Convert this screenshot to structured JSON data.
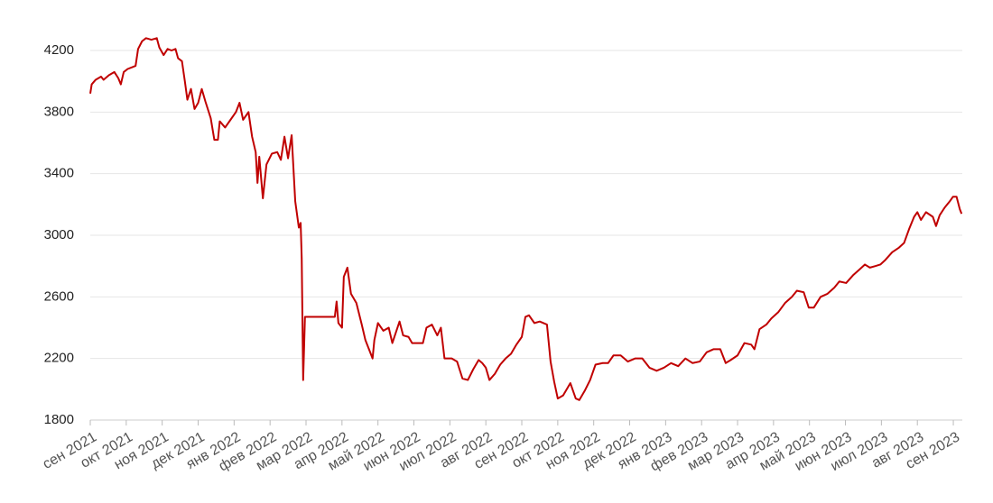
{
  "chart_data": {
    "type": "line",
    "x": [
      0,
      0.04,
      0.15,
      0.3,
      0.37,
      0.52,
      0.67,
      0.78,
      0.85,
      0.93,
      1.04,
      1.15,
      1.26,
      1.33,
      1.44,
      1.55,
      1.7,
      1.85,
      1.92,
      2.04,
      2.15,
      2.26,
      2.37,
      2.44,
      2.55,
      2.63,
      2.7,
      2.8,
      2.9,
      3.0,
      3.1,
      3.2,
      3.35,
      3.45,
      3.55,
      3.6,
      3.75,
      3.9,
      4.05,
      4.15,
      4.25,
      4.4,
      4.5,
      4.6,
      4.65,
      4.7,
      4.8,
      4.9,
      5.05,
      5.2,
      5.3,
      5.4,
      5.5,
      5.6,
      5.7,
      5.8,
      5.85,
      5.88,
      5.92,
      5.97,
      6.25,
      6.8,
      6.85,
      6.9,
      7.0,
      7.05,
      7.15,
      7.25,
      7.4,
      7.55,
      7.65,
      7.75,
      7.85,
      7.9,
      8.0,
      8.15,
      8.3,
      8.4,
      8.6,
      8.7,
      8.85,
      8.95,
      9.25,
      9.35,
      9.5,
      9.65,
      9.75,
      9.85,
      10.05,
      10.2,
      10.35,
      10.5,
      10.65,
      10.8,
      10.9,
      11.0,
      11.1,
      11.25,
      11.4,
      11.55,
      11.7,
      11.85,
      12.0,
      12.1,
      12.2,
      12.35,
      12.5,
      12.7,
      12.8,
      12.9,
      13.0,
      13.15,
      13.35,
      13.5,
      13.6,
      13.75,
      13.9,
      14.05,
      14.25,
      14.4,
      14.55,
      14.75,
      14.95,
      15.15,
      15.35,
      15.55,
      15.75,
      15.95,
      16.15,
      16.35,
      16.55,
      16.75,
      16.95,
      17.14,
      17.33,
      17.52,
      17.67,
      17.81,
      18.0,
      18.19,
      18.38,
      18.47,
      18.61,
      18.8,
      18.94,
      19.13,
      19.32,
      19.51,
      19.65,
      19.84,
      19.98,
      20.12,
      20.31,
      20.5,
      20.69,
      20.83,
      21.02,
      21.21,
      21.4,
      21.54,
      21.68,
      21.83,
      21.97,
      22.11,
      22.3,
      22.49,
      22.63,
      22.77,
      22.91,
      23.0,
      23.1,
      23.24,
      23.43,
      23.52,
      23.62,
      23.76,
      23.9,
      23.99,
      24.09,
      24.18,
      24.23
    ],
    "series": [
      {
        "color": "#c00000",
        "values": [
          3920,
          3980,
          4010,
          4030,
          4010,
          4040,
          4060,
          4020,
          3980,
          4060,
          4080,
          4090,
          4100,
          4210,
          4260,
          4280,
          4270,
          4280,
          4220,
          4170,
          4210,
          4200,
          4210,
          4150,
          4130,
          4000,
          3880,
          3950,
          3820,
          3860,
          3950,
          3870,
          3760,
          3620,
          3620,
          3740,
          3700,
          3750,
          3800,
          3860,
          3750,
          3800,
          3640,
          3540,
          3340,
          3510,
          3240,
          3460,
          3530,
          3540,
          3490,
          3640,
          3500,
          3650,
          3220,
          3050,
          3080,
          2850,
          2060,
          2470,
          2470,
          2470,
          2570,
          2430,
          2400,
          2730,
          2790,
          2620,
          2560,
          2420,
          2320,
          2260,
          2200,
          2320,
          2430,
          2380,
          2400,
          2300,
          2440,
          2350,
          2340,
          2300,
          2300,
          2400,
          2420,
          2350,
          2400,
          2200,
          2200,
          2180,
          2070,
          2060,
          2130,
          2190,
          2170,
          2140,
          2060,
          2100,
          2160,
          2200,
          2230,
          2290,
          2340,
          2470,
          2480,
          2430,
          2440,
          2420,
          2180,
          2050,
          1940,
          1960,
          2040,
          1940,
          1930,
          1990,
          2060,
          2160,
          2170,
          2170,
          2220,
          2220,
          2180,
          2200,
          2200,
          2140,
          2120,
          2140,
          2170,
          2150,
          2200,
          2170,
          2180,
          2240,
          2260,
          2260,
          2170,
          2190,
          2220,
          2300,
          2290,
          2260,
          2390,
          2420,
          2460,
          2500,
          2560,
          2600,
          2640,
          2630,
          2530,
          2530,
          2600,
          2620,
          2660,
          2700,
          2690,
          2740,
          2780,
          2810,
          2790,
          2800,
          2810,
          2840,
          2890,
          2920,
          2950,
          3040,
          3120,
          3150,
          3100,
          3150,
          3120,
          3060,
          3130,
          3180,
          3220,
          3250,
          3250,
          3170,
          3140
        ]
      }
    ],
    "xlim": [
      0,
      24.25
    ],
    "xticks": [
      {
        "value": 0,
        "label": "сен 2021"
      },
      {
        "value": 1,
        "label": "окт 2021"
      },
      {
        "value": 2,
        "label": "ноя 2021"
      },
      {
        "value": 3,
        "label": "дек 2021"
      },
      {
        "value": 4,
        "label": "янв 2022"
      },
      {
        "value": 5,
        "label": "фев 2022"
      },
      {
        "value": 6,
        "label": "мар 2022"
      },
      {
        "value": 7,
        "label": "апр 2022"
      },
      {
        "value": 8,
        "label": "май 2022"
      },
      {
        "value": 9,
        "label": "июн 2022"
      },
      {
        "value": 10,
        "label": "июл 2022"
      },
      {
        "value": 11,
        "label": "авг 2022"
      },
      {
        "value": 12,
        "label": "сен 2022"
      },
      {
        "value": 13,
        "label": "окт 2022"
      },
      {
        "value": 14,
        "label": "ноя 2022"
      },
      {
        "value": 15,
        "label": "дек 2022"
      },
      {
        "value": 16,
        "label": "янв 2023"
      },
      {
        "value": 17,
        "label": "фев 2023"
      },
      {
        "value": 18,
        "label": "мар 2023"
      },
      {
        "value": 19,
        "label": "апр 2023"
      },
      {
        "value": 20,
        "label": "май 2023"
      },
      {
        "value": 21,
        "label": "июн 2023"
      },
      {
        "value": 22,
        "label": "июл 2023"
      },
      {
        "value": 23,
        "label": "авг 2023"
      },
      {
        "value": 24,
        "label": "сен 2023"
      }
    ],
    "ylim": [
      1800,
      4200
    ],
    "yticks": [
      1800,
      2200,
      2600,
      3000,
      3400,
      3800,
      4200
    ],
    "grid": true
  }
}
